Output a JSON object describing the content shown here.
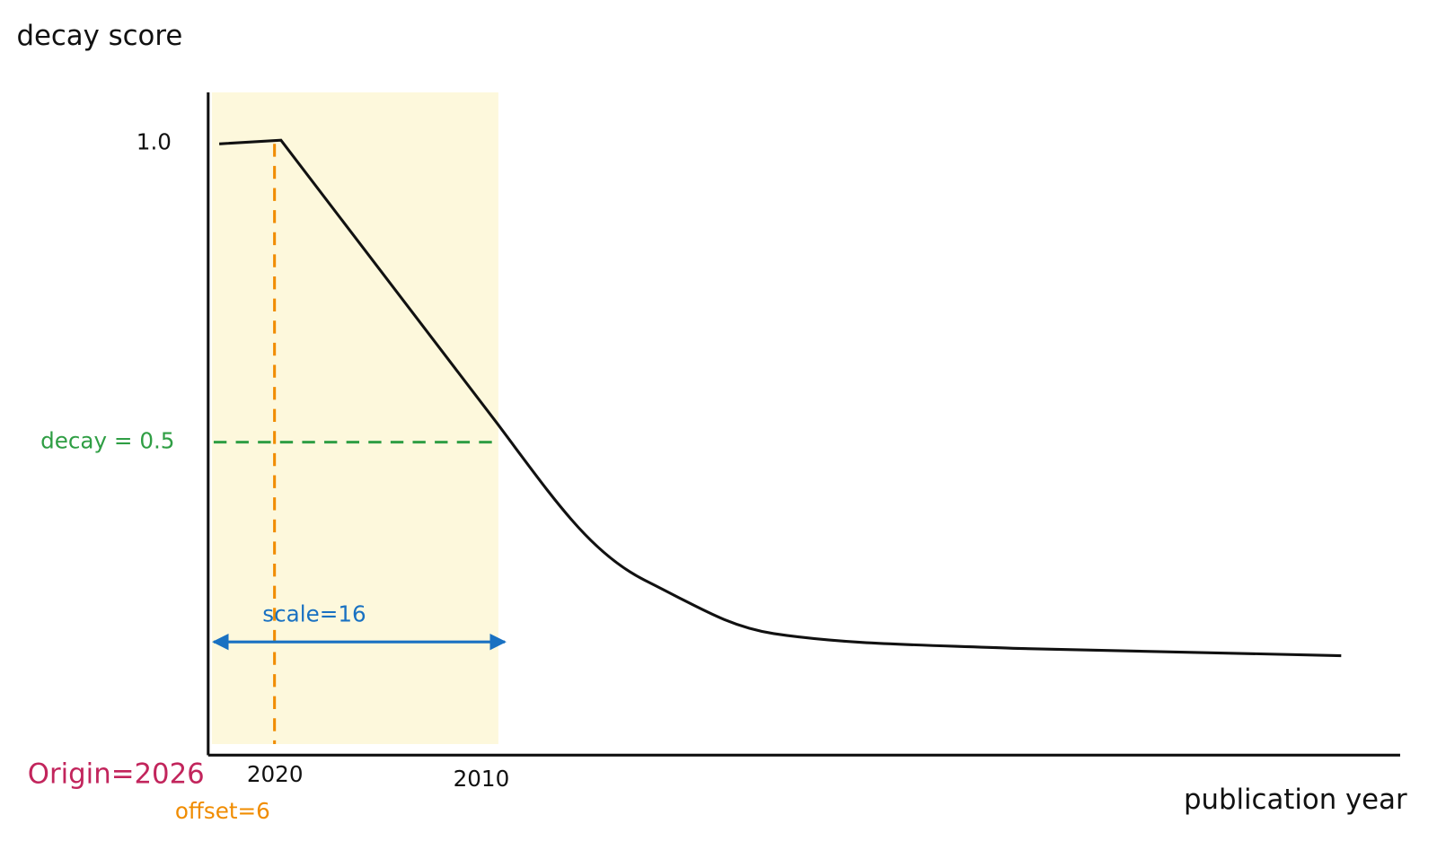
{
  "axes": {
    "y_label": "decay score",
    "x_label": "publication year",
    "y_tick": "1.0",
    "x_ticks": [
      "2020",
      "2010"
    ]
  },
  "annotations": {
    "decay": "decay = 0.5",
    "scale": "scale=16",
    "origin": "Origin=2026",
    "offset": "offset=6"
  }
}
